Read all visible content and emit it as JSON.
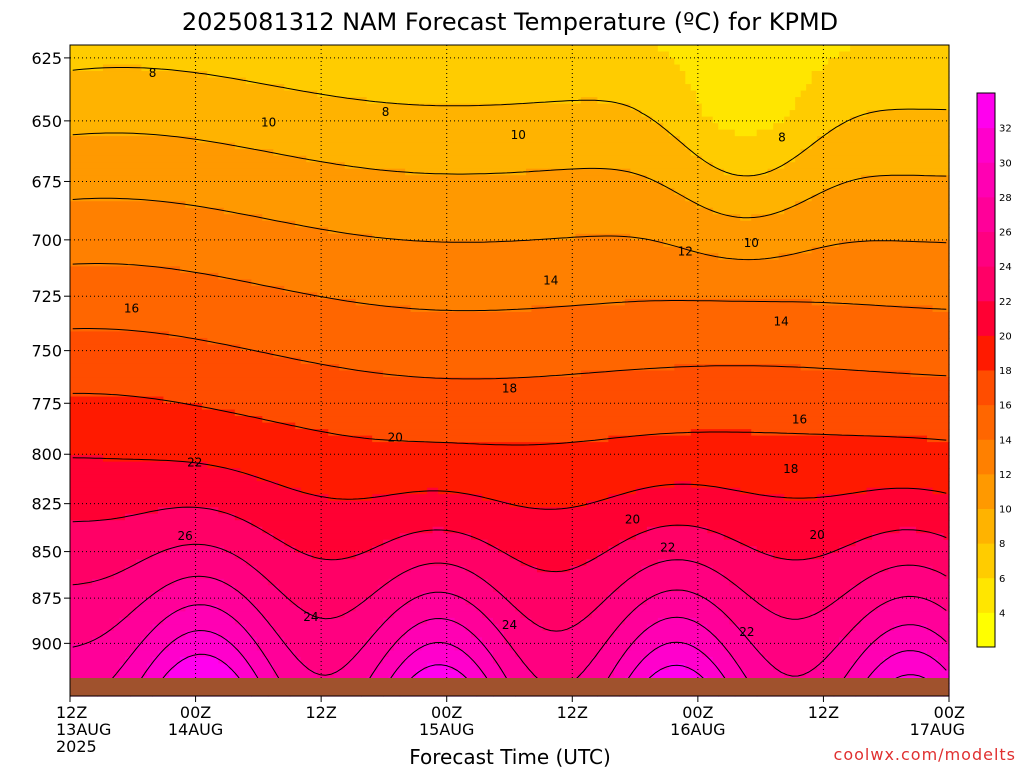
{
  "chart_data": {
    "type": "heatmap",
    "title": "2025081312 NAM Forecast Temperature (ºC) for KPMD",
    "xlabel": "Forecast Time (UTC)",
    "ylabel": "",
    "credit": "coolwx.com/modelts",
    "y_scale": "pressure (hPa), decreasing upward",
    "ylim": [
      930,
      620
    ],
    "y_ticks": [
      625,
      650,
      675,
      700,
      725,
      750,
      775,
      800,
      825,
      850,
      875,
      900
    ],
    "x_ticks": [
      {
        "line1": "12Z",
        "line2": "13AUG",
        "line3": "2025"
      },
      {
        "line1": "00Z",
        "line2": "14AUG",
        "line3": ""
      },
      {
        "line1": "12Z",
        "line2": "",
        "line3": ""
      },
      {
        "line1": "00Z",
        "line2": "15AUG",
        "line3": ""
      },
      {
        "line1": "12Z",
        "line2": "",
        "line3": ""
      },
      {
        "line1": "00Z",
        "line2": "16AUG",
        "line3": ""
      },
      {
        "line1": "12Z",
        "line2": "",
        "line3": ""
      },
      {
        "line1": "00Z",
        "line2": "17AUG",
        "line3": ""
      }
    ],
    "colorbar": {
      "levels": [
        2,
        4,
        6,
        8,
        10,
        12,
        14,
        16,
        18,
        20,
        22,
        24,
        26,
        28,
        30,
        32,
        34
      ],
      "labels": [
        "4",
        "6",
        "8",
        "10",
        "12",
        "14",
        "16",
        "18",
        "20",
        "22",
        "24",
        "26",
        "28",
        "30",
        "32"
      ],
      "colors": [
        "#ffff00",
        "#ffe600",
        "#ffcc00",
        "#ffb300",
        "#ff9900",
        "#ff8000",
        "#ff6600",
        "#ff4d00",
        "#ff1a00",
        "#ff0033",
        "#ff0066",
        "#ff0080",
        "#ff0099",
        "#ff00b3",
        "#ff00cc",
        "#ff00ee"
      ]
    },
    "contour_labels": [
      "8",
      "8",
      "8",
      "10",
      "10",
      "10",
      "12",
      "14",
      "14",
      "16",
      "16",
      "18",
      "18",
      "20",
      "20",
      "20",
      "22",
      "22",
      "22",
      "24",
      "24",
      "26"
    ],
    "grid": true,
    "terrain_color": "#a0522d"
  }
}
